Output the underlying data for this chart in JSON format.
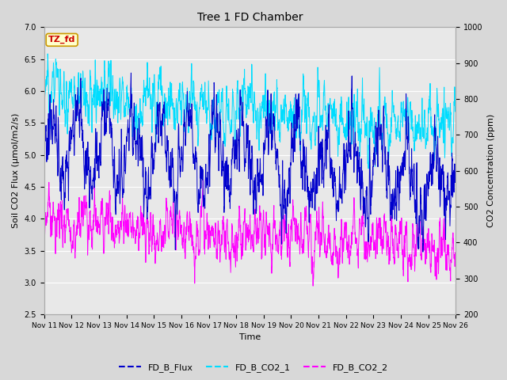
{
  "title": "Tree 1 FD Chamber",
  "xlabel": "Time",
  "ylabel_left": "Soil CO2 Flux (μmol/m2/s)",
  "ylabel_right": "CO2 Concentration (ppm)",
  "ylim_left": [
    2.5,
    7.0
  ],
  "ylim_right": [
    200,
    1000
  ],
  "xtick_labels": [
    "Nov 11",
    "Nov 12",
    "Nov 13",
    "Nov 14",
    "Nov 15",
    "Nov 16",
    "Nov 17",
    "Nov 18",
    "Nov 19",
    "Nov 20",
    "Nov 21",
    "Nov 22",
    "Nov 23",
    "Nov 24",
    "Nov 25",
    "Nov 26"
  ],
  "annotation_text": "TZ_fd",
  "annotation_color": "#cc0000",
  "annotation_bg": "#ffffcc",
  "annotation_border": "#cc9900",
  "flux_color": "#0000cc",
  "co2_1_color": "#00ddff",
  "co2_2_color": "#ff00ff",
  "legend_labels": [
    "FD_B_Flux",
    "FD_B_CO2_1",
    "FD_B_CO2_2"
  ],
  "bg_color": "#d8d8d8",
  "plot_bg": "#e8e8e8",
  "grid_color": "#ffffff",
  "n_points": 2000,
  "seed": 42
}
